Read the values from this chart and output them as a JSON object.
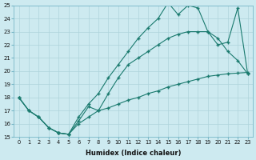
{
  "xlabel": "Humidex (Indice chaleur)",
  "ylabel": "",
  "bg_color": "#cdeaf0",
  "line_color": "#1a7a6e",
  "grid_color": "#aed4db",
  "xlim": [
    -0.5,
    23.5
  ],
  "ylim": [
    15,
    25
  ],
  "xticks": [
    0,
    1,
    2,
    3,
    4,
    5,
    6,
    7,
    8,
    9,
    10,
    11,
    12,
    13,
    14,
    15,
    16,
    17,
    18,
    19,
    20,
    21,
    22,
    23
  ],
  "yticks": [
    15,
    16,
    17,
    18,
    19,
    20,
    21,
    22,
    23,
    24,
    25
  ],
  "line1_x": [
    0,
    1,
    2,
    3,
    4,
    5,
    6,
    7,
    8,
    9,
    10,
    11,
    12,
    13,
    14,
    15,
    16,
    17,
    18,
    19,
    20,
    21,
    22,
    23
  ],
  "line1_y": [
    18.0,
    17.0,
    16.5,
    15.7,
    15.3,
    15.2,
    16.0,
    16.5,
    17.0,
    17.2,
    17.5,
    17.8,
    18.0,
    18.3,
    18.5,
    18.8,
    19.0,
    19.2,
    19.4,
    19.6,
    19.7,
    19.8,
    19.85,
    19.9
  ],
  "line2_x": [
    0,
    1,
    2,
    3,
    4,
    4,
    5,
    6,
    7,
    8,
    9,
    10,
    11,
    12,
    13,
    14,
    15,
    16,
    17,
    18,
    19,
    20,
    21,
    22,
    23
  ],
  "line2_y": [
    18.0,
    17.0,
    16.5,
    15.7,
    15.3,
    15.3,
    15.2,
    16.2,
    17.3,
    17.0,
    18.3,
    19.5,
    20.5,
    21.0,
    21.5,
    22.0,
    22.5,
    22.8,
    23.0,
    23.0,
    23.0,
    22.5,
    21.5,
    20.8,
    19.8
  ],
  "line3_x": [
    0,
    1,
    2,
    3,
    4,
    5,
    6,
    7,
    8,
    9,
    10,
    11,
    12,
    13,
    14,
    15,
    16,
    17,
    18,
    19,
    20,
    21,
    22,
    23
  ],
  "line3_y": [
    18.0,
    17.0,
    16.5,
    15.7,
    15.3,
    15.2,
    16.5,
    17.5,
    18.3,
    19.5,
    20.5,
    21.5,
    22.5,
    23.3,
    24.0,
    25.2,
    24.3,
    25.0,
    24.8,
    23.0,
    22.0,
    22.2,
    24.8,
    19.8
  ]
}
